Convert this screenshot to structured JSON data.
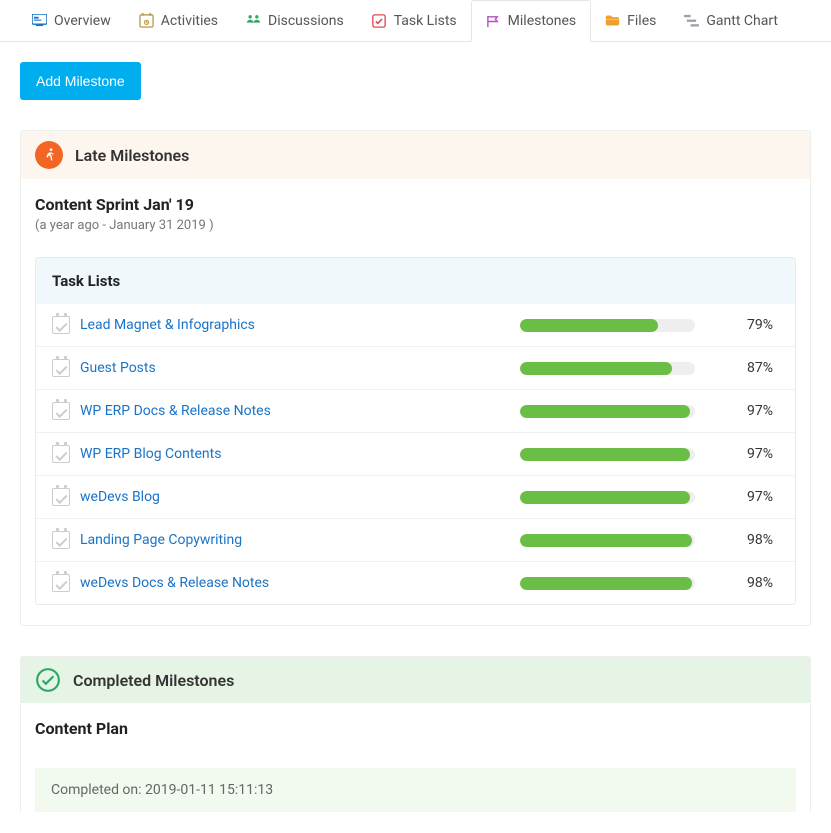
{
  "tabs": [
    {
      "label": "Overview",
      "icon_color": "#1a73c7"
    },
    {
      "label": "Activities",
      "icon_color": "#c0a050"
    },
    {
      "label": "Discussions",
      "icon_color": "#2fa866"
    },
    {
      "label": "Task Lists",
      "icon_color": "#e04848"
    },
    {
      "label": "Milestones",
      "icon_color": "#b84fc0"
    },
    {
      "label": "Files",
      "icon_color": "#f0a030"
    },
    {
      "label": "Gantt Chart",
      "icon_color": "#9aa0a6"
    }
  ],
  "active_tab_index": 4,
  "add_button_label": "Add Milestone",
  "late_section": {
    "title": "Late Milestones",
    "icon_bg": "#f26522",
    "milestone_title": "Content Sprint Jan' 19",
    "milestone_subtitle": "(a year ago - January 31 2019 )",
    "tasklist_header": "Task Lists",
    "link_color": "#1a73c7",
    "bar_color": "#6abe45",
    "bar_bg": "#eeeeee",
    "tasks": [
      {
        "name": "Lead Magnet & Infographics",
        "percent": 79
      },
      {
        "name": "Guest Posts",
        "percent": 87
      },
      {
        "name": "WP ERP Docs & Release Notes",
        "percent": 97
      },
      {
        "name": "WP ERP Blog Contents",
        "percent": 97
      },
      {
        "name": "weDevs Blog",
        "percent": 97
      },
      {
        "name": "Landing Page Copywriting",
        "percent": 98
      },
      {
        "name": "weDevs Docs & Release Notes",
        "percent": 98
      }
    ]
  },
  "completed_section": {
    "title": "Completed Milestones",
    "icon_color": "#2fa866",
    "header_bg": "#e6f4e6",
    "milestone_title": "Content Plan",
    "completed_on_label": "Completed on: 2019-01-11 15:11:13",
    "note_bg": "#f2faf0"
  }
}
